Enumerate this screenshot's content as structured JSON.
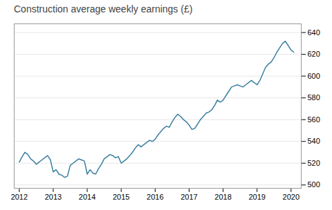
{
  "chart_data": {
    "type": "line",
    "title": "Construction average weekly earnings (£)",
    "color": "#3a7fa0",
    "x": [
      2012.0,
      2012.0833333333333,
      2012.1666666666667,
      2012.25,
      2012.3333333333333,
      2012.4166666666667,
      2012.5,
      2012.5833333333333,
      2012.6666666666667,
      2012.75,
      2012.8333333333333,
      2012.9166666666667,
      2013.0,
      2013.0833333333333,
      2013.1666666666667,
      2013.25,
      2013.3333333333333,
      2013.4166666666667,
      2013.5,
      2013.5833333333333,
      2013.6666666666667,
      2013.75,
      2013.8333333333333,
      2013.9166666666667,
      2014.0,
      2014.0833333333333,
      2014.1666666666667,
      2014.25,
      2014.3333333333333,
      2014.4166666666667,
      2014.5,
      2014.5833333333333,
      2014.6666666666667,
      2014.75,
      2014.8333333333333,
      2014.9166666666667,
      2015.0,
      2015.0833333333333,
      2015.1666666666667,
      2015.25,
      2015.3333333333333,
      2015.4166666666667,
      2015.5,
      2015.5833333333333,
      2015.6666666666667,
      2015.75,
      2015.8333333333333,
      2015.9166666666667,
      2016.0,
      2016.0833333333333,
      2016.1666666666667,
      2016.25,
      2016.3333333333333,
      2016.4166666666667,
      2016.5,
      2016.5833333333333,
      2016.6666666666667,
      2016.75,
      2016.8333333333333,
      2016.9166666666667,
      2017.0,
      2017.0833333333333,
      2017.1666666666667,
      2017.25,
      2017.3333333333333,
      2017.4166666666667,
      2017.5,
      2017.5833333333333,
      2017.6666666666667,
      2017.75,
      2017.8333333333333,
      2017.9166666666667,
      2018.0,
      2018.0833333333333,
      2018.1666666666667,
      2018.25,
      2018.3333333333333,
      2018.4166666666667,
      2018.5,
      2018.5833333333333,
      2018.6666666666667,
      2018.75,
      2018.8333333333333,
      2018.9166666666667,
      2019.0,
      2019.0833333333333,
      2019.1666666666667,
      2019.25,
      2019.3333333333333,
      2019.4166666666667,
      2019.5,
      2019.5833333333333,
      2019.6666666666667,
      2019.75,
      2019.8333333333333,
      2019.9166666666667,
      2020.0,
      2020.0833333333333
    ],
    "values": [
      521,
      526,
      530,
      528,
      524,
      522,
      519,
      521,
      523,
      525,
      527,
      523,
      512,
      514,
      510,
      509,
      507,
      508,
      518,
      520,
      522,
      524,
      523,
      522,
      510,
      514,
      511,
      510,
      515,
      519,
      524,
      526,
      528,
      527,
      525,
      526,
      520,
      522,
      524,
      527,
      530,
      534,
      537,
      535,
      537,
      539,
      541,
      540,
      542,
      546,
      549,
      552,
      554,
      553,
      558,
      562,
      565,
      563,
      560,
      558,
      555,
      551,
      552,
      556,
      560,
      563,
      566,
      567,
      569,
      573,
      578,
      576,
      578,
      582,
      586,
      590,
      591,
      592,
      591,
      590,
      592,
      594,
      596,
      594,
      592,
      596,
      602,
      608,
      611,
      613,
      617,
      622,
      626,
      630,
      632,
      628,
      624,
      622
    ],
    "xlim": [
      2011.85,
      2020.3
    ],
    "xticks": [
      2012,
      2013,
      2014,
      2015,
      2016,
      2017,
      2018,
      2019,
      2020
    ],
    "ylim": [
      497,
      648
    ],
    "yticks": [
      500,
      520,
      540,
      560,
      580,
      600,
      620,
      640
    ],
    "grid": true
  }
}
